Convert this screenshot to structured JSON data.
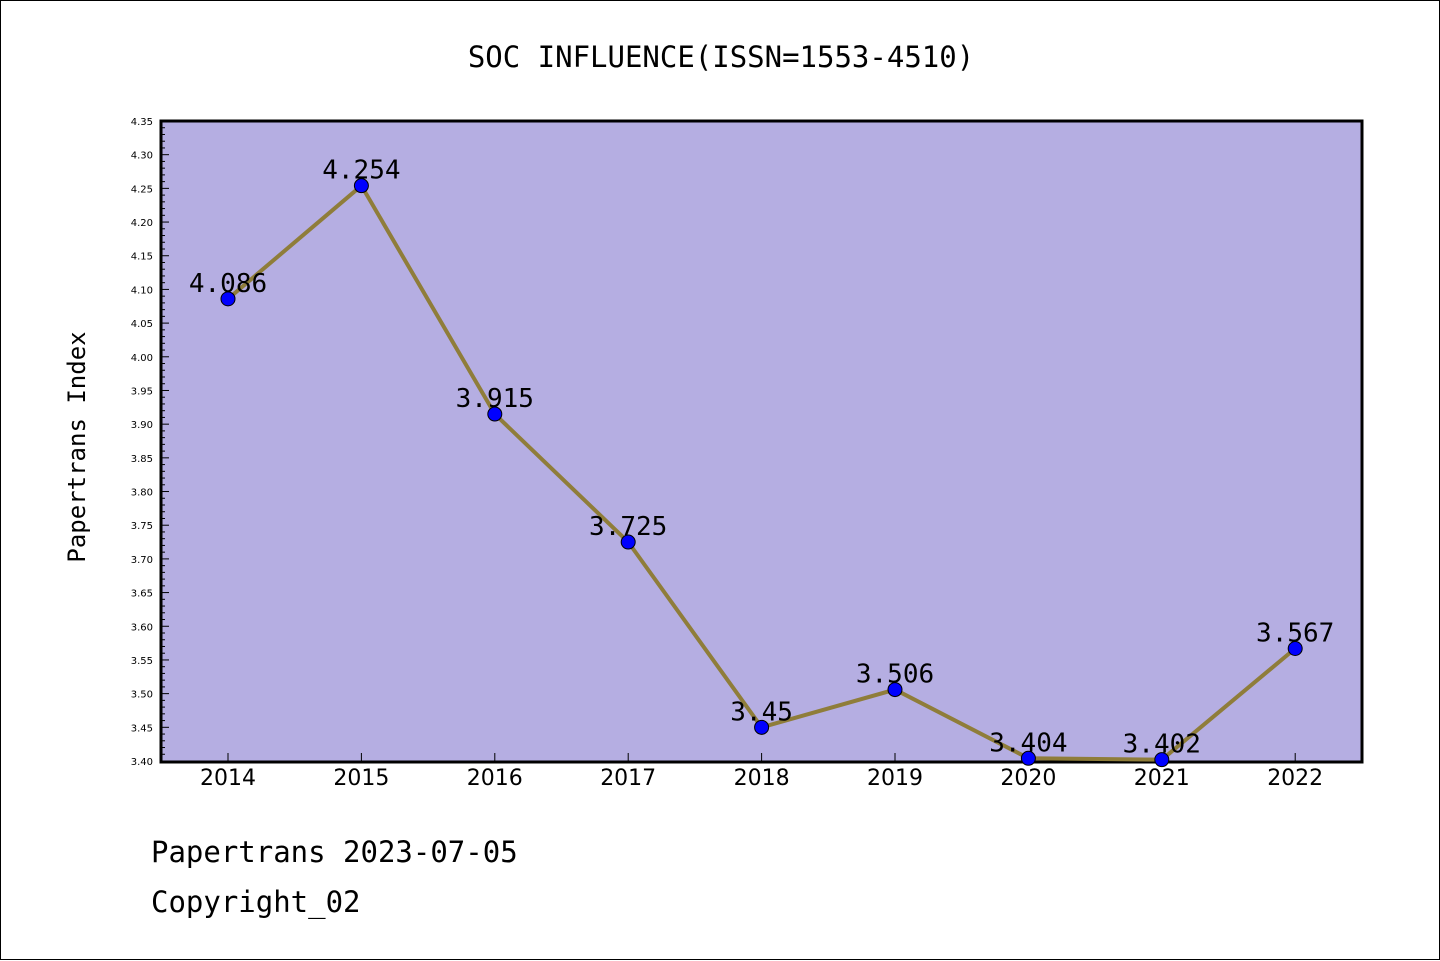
{
  "chart_data": {
    "type": "line",
    "title": "SOC INFLUENCE(ISSN=1553-4510)",
    "xlabel": "",
    "ylabel": "Papertrans Index",
    "categories": [
      "2014",
      "2015",
      "2016",
      "2017",
      "2018",
      "2019",
      "2020",
      "2021",
      "2022"
    ],
    "series": [
      {
        "values": [
          4.086,
          4.254,
          3.915,
          3.725,
          3.45,
          3.506,
          3.404,
          3.402,
          3.567
        ],
        "labels": [
          "4.086",
          "4.254",
          "3.915",
          "3.725",
          "3.45",
          "3.506",
          "3.404",
          "3.402",
          "3.567"
        ]
      }
    ],
    "ylim": [
      3.4,
      4.35
    ],
    "yticks": [
      "3.40",
      "3.45",
      "3.50",
      "3.55",
      "3.60",
      "3.65",
      "3.70",
      "3.75",
      "3.80",
      "3.85",
      "3.90",
      "3.95",
      "4.00",
      "4.05",
      "4.10",
      "4.15",
      "4.20",
      "4.25",
      "4.30",
      "4.35"
    ],
    "grid": false,
    "legend": "none",
    "colors": {
      "plot_background": "#b5aee2",
      "line": "#8f7d3a",
      "marker": "#0000ff"
    }
  },
  "footer": {
    "line1": "Papertrans 2023-07-05",
    "line2": "Copyright_02"
  }
}
